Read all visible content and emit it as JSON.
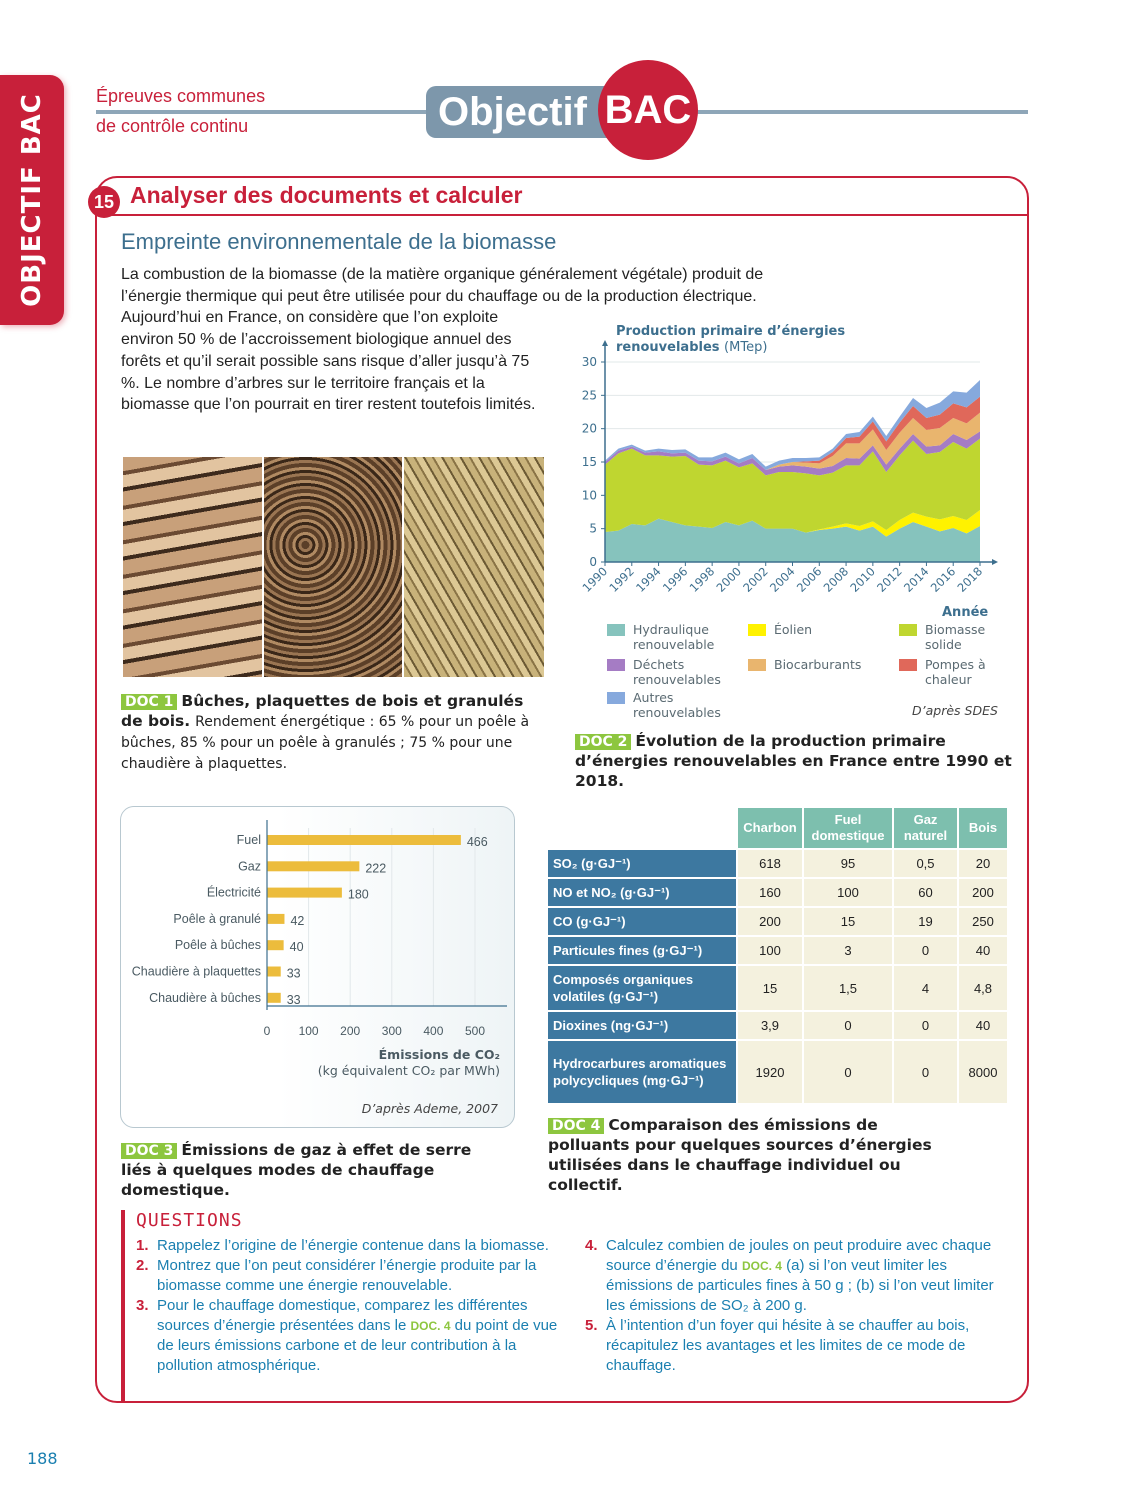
{
  "sidebar_tab": {
    "light": "OBJECTIF",
    "bold": "BAC"
  },
  "header": {
    "line1": "Épreuves communes",
    "line2": "de contrôle continu",
    "logo_word": "Objectif",
    "logo_badge": "BAC"
  },
  "exercise": {
    "number": "15",
    "title": "Analyser des documents et calculer",
    "subtitle": "Empreinte environnementale de la biomasse",
    "intro": "La combustion de la biomasse (de la matière organique généralement végétale) produit de l’énergie thermique qui peut être utilisée pour du chauffage ou de la production électrique. Aujourd’hui en France, on considère que l’on exploite environ 50 % de l’accroissement biologique annuel des forêts et qu’il serait possible sans risque d’aller jusqu’à 75 %. Le nombre d’arbres sur le territoire français et la biomasse que l’on pourrait en tirer restent toutefois limités."
  },
  "doc1": {
    "label": "DOC 1",
    "title": "Bûches, plaquettes de bois et granulés de bois.",
    "text": "Rendement énergétique : 65 % pour un poêle à bûches, 85 % pour un poêle à granulés ; 75 % pour une chaudière à plaquettes.",
    "images": [
      "bûches",
      "plaquettes",
      "granulés"
    ]
  },
  "doc2": {
    "label": "DOC 2",
    "title": "Évolution de la production primaire d’énergies renouvelables en France entre 1990 et 2018.",
    "source": "D’après SDES"
  },
  "doc3": {
    "label": "DOC 3",
    "title": "Émissions de gaz à effet de serre liés à quelques modes de chauffage domestique.",
    "source": "D’après Ademe, 2007"
  },
  "doc4": {
    "label": "DOC 4",
    "title": "Comparaison des émissions de polluants pour quelques sources d’énergies utilisées dans le chauffage individuel ou collectif.",
    "columns": [
      "Charbon",
      "Fuel domestique",
      "Gaz naturel",
      "Bois"
    ],
    "rows": [
      {
        "label": "SO₂ (g·GJ⁻¹)",
        "values": [
          "618",
          "95",
          "0,5",
          "20"
        ]
      },
      {
        "label": "NO et NO₂ (g·GJ⁻¹)",
        "values": [
          "160",
          "100",
          "60",
          "200"
        ]
      },
      {
        "label": "CO  (g·GJ⁻¹)",
        "values": [
          "200",
          "15",
          "19",
          "250"
        ]
      },
      {
        "label": "Particules fines (g·GJ⁻¹)",
        "values": [
          "100",
          "3",
          "0",
          "40"
        ]
      },
      {
        "label": "Composés organiques volatiles (g·GJ⁻¹)",
        "values": [
          "15",
          "1,5",
          "4",
          "4,8"
        ]
      },
      {
        "label": "Dioxines (ng·GJ⁻¹)",
        "values": [
          "3,9",
          "0",
          "0",
          "40"
        ]
      },
      {
        "label": "Hydrocarbures aromatiques polycycliques (mg·GJ⁻¹)",
        "values": [
          "1920",
          "0",
          "0",
          "8000"
        ]
      }
    ]
  },
  "chart_data": [
    {
      "type": "area",
      "stacked": true,
      "title": "Production primaire d’énergies renouvelables",
      "ylabel_unit": "(MTep)",
      "xlabel": "Année",
      "x": [
        1990,
        1991,
        1992,
        1993,
        1994,
        1995,
        1996,
        1997,
        1998,
        1999,
        2000,
        2001,
        2002,
        2003,
        2004,
        2005,
        2006,
        2007,
        2008,
        2009,
        2010,
        2011,
        2012,
        2013,
        2014,
        2015,
        2016,
        2017,
        2018
      ],
      "xticks": [
        "1990",
        "1992",
        "1994",
        "1996",
        "1998",
        "2000",
        "2002",
        "2004",
        "2006",
        "2008",
        "2010",
        "2012",
        "2014",
        "2016",
        "2018"
      ],
      "yticks": [
        "0",
        "5",
        "10",
        "15",
        "20",
        "25",
        "30"
      ],
      "ylim": [
        0,
        30
      ],
      "grid": true,
      "legend": "bottom",
      "series": [
        {
          "name": "Hydraulique renouvelable",
          "color": "#86c3bd",
          "values": [
            4.5,
            4.7,
            5.7,
            5.5,
            6.5,
            6.0,
            5.5,
            5.3,
            5.1,
            6.0,
            5.5,
            6.2,
            5.0,
            5.0,
            5.0,
            4.4,
            4.8,
            5.0,
            5.3,
            4.7,
            5.3,
            3.8,
            5.0,
            6.0,
            5.3,
            4.6,
            5.1,
            4.3,
            5.4
          ]
        },
        {
          "name": "Éolien",
          "color": "#fff200",
          "values": [
            0,
            0,
            0,
            0,
            0,
            0,
            0,
            0,
            0,
            0,
            0,
            0,
            0,
            0,
            0,
            0,
            0.1,
            0.3,
            0.5,
            0.7,
            0.8,
            1.0,
            1.3,
            1.4,
            1.5,
            1.8,
            1.8,
            2.0,
            2.4
          ]
        },
        {
          "name": "Biomasse solide",
          "color": "#bfd630",
          "values": [
            10.1,
            11.6,
            11.3,
            10.5,
            9.5,
            9.8,
            10.4,
            9.3,
            9.4,
            9.2,
            8.7,
            8.6,
            8.0,
            8.5,
            8.5,
            8.9,
            8.1,
            8.1,
            8.7,
            9.1,
            10.5,
            8.7,
            9.7,
            10.8,
            9.4,
            10.1,
            11.1,
            10.7,
            10.7
          ]
        },
        {
          "name": "Déchets renouvelables",
          "color": "#a57cc4",
          "values": [
            0.4,
            0.4,
            0.3,
            0.4,
            0.6,
            0.5,
            0.5,
            0.6,
            0.6,
            0.6,
            0.6,
            0.8,
            0.8,
            0.8,
            1.0,
            1.0,
            1.0,
            1.0,
            1.1,
            1.0,
            0.9,
            1.1,
            1.0,
            1.0,
            1.1,
            1.0,
            1.2,
            1.3,
            1.1
          ]
        },
        {
          "name": "Biocarburants",
          "color": "#e9b56e",
          "values": [
            0,
            0,
            0,
            0,
            0,
            0,
            0,
            0,
            0,
            0,
            0,
            0,
            0,
            0.3,
            0.5,
            0.6,
            0.8,
            1.5,
            2.2,
            2.3,
            2.4,
            2.2,
            2.4,
            2.4,
            2.5,
            2.6,
            2.4,
            2.5,
            2.8
          ]
        },
        {
          "name": "Pompes à chaleur",
          "color": "#e0685a",
          "values": [
            0,
            0,
            0,
            0,
            0,
            0,
            0,
            0,
            0,
            0,
            0,
            0,
            0,
            0,
            0,
            0.2,
            0.4,
            0.6,
            0.8,
            1.0,
            1.2,
            1.3,
            1.5,
            1.8,
            1.8,
            2.0,
            2.2,
            2.4,
            2.4
          ]
        },
        {
          "name": "Autres renouvelables",
          "color": "#86a9dd",
          "values": [
            0.2,
            0.3,
            0.3,
            0.3,
            0.4,
            0.5,
            0.5,
            0.5,
            0.6,
            0.6,
            0.6,
            0.6,
            0.5,
            0.6,
            0.6,
            0.5,
            0.5,
            0.5,
            0.6,
            0.7,
            0.7,
            0.8,
            0.9,
            1.2,
            1.5,
            1.8,
            1.8,
            2.2,
            2.5
          ]
        }
      ]
    },
    {
      "type": "bar",
      "orientation": "horizontal",
      "categories": [
        "Fuel",
        "Gaz",
        "Électricité",
        "Poêle à granulé",
        "Poêle à bûches",
        "Chaudière à plaquettes",
        "Chaudière à bûches"
      ],
      "values": [
        466,
        222,
        180,
        42,
        40,
        33,
        33
      ],
      "color": "#ecbc3c",
      "xticks": [
        "0",
        "100",
        "200",
        "300",
        "400",
        "500"
      ],
      "xlim": [
        0,
        550
      ],
      "xlabel": "Émissions de CO₂",
      "xlabel_unit": "(kg équivalent CO₂ par MWh)",
      "grid": true
    }
  ],
  "questions": {
    "title": "QUESTIONS",
    "items": [
      {
        "n": "1.",
        "parts": [
          "Rappelez l’origine de l’énergie contenue dans la biomasse."
        ]
      },
      {
        "n": "2.",
        "parts": [
          "Montrez que l’on peut considérer l’énergie produite par la biomasse comme une énergie renouvelable."
        ]
      },
      {
        "n": "3.",
        "parts": [
          "Pour le chauffage domestique, comparez les différentes sources d’énergie présentées dans le ",
          "DOC. 4",
          " du point de vue de leurs émissions carbone et de leur contribution à la pollution atmosphérique."
        ]
      },
      {
        "n": "4.",
        "parts": [
          "Calculez combien de joules on peut produire avec chaque source d’énergie du ",
          "DOC. 4",
          " (a) si l’on veut limiter les émissions de particules fines à 50 g ; (b) si l’on veut limiter les émissions de SO₂ à 200 g."
        ]
      },
      {
        "n": "5.",
        "parts": [
          "À l’intention d’un foyer qui hésite à se chauffer au bois, récapitulez les avantages et les limites de ce mode de chauffage."
        ]
      }
    ]
  },
  "page_number": "188"
}
